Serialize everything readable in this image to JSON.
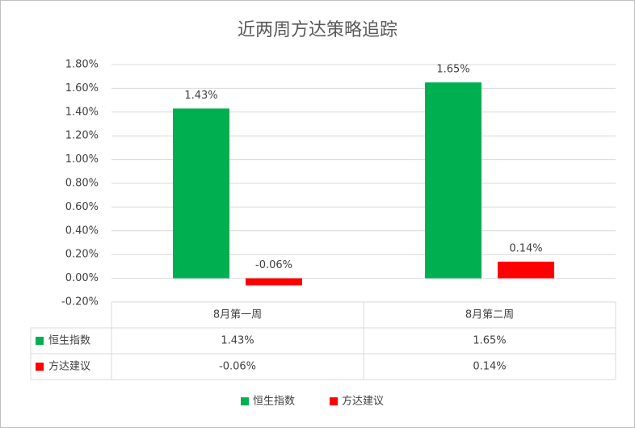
{
  "chart_data": {
    "type": "bar",
    "title": "近两周方达策略追踪",
    "categories": [
      "8月第一周",
      "8月第二周"
    ],
    "series": [
      {
        "name": "恒生指数",
        "color": "#00b050",
        "values": [
          1.43,
          1.65
        ],
        "value_labels": [
          "1.43%",
          "1.65%"
        ]
      },
      {
        "name": "方达建议",
        "color": "#ff0000",
        "values": [
          -0.06,
          0.14
        ],
        "value_labels": [
          "-0.06%",
          "0.14%"
        ]
      }
    ],
    "ylim": [
      -0.2,
      1.8
    ],
    "yticks": [
      {
        "value": -0.2,
        "label": "-0.20%"
      },
      {
        "value": 0,
        "label": "0.00%"
      },
      {
        "value": 0.2,
        "label": "0.20%"
      },
      {
        "value": 0.4,
        "label": "0.40%"
      },
      {
        "value": 0.6,
        "label": "0.60%"
      },
      {
        "value": 0.8,
        "label": "0.80%"
      },
      {
        "value": 1.0,
        "label": "1.00%"
      },
      {
        "value": 1.2,
        "label": "1.20%"
      },
      {
        "value": 1.4,
        "label": "1.40%"
      },
      {
        "value": 1.6,
        "label": "1.60%"
      },
      {
        "value": 1.8,
        "label": "1.80%"
      }
    ],
    "grid": true,
    "data_table": true,
    "legend": "bottom"
  }
}
